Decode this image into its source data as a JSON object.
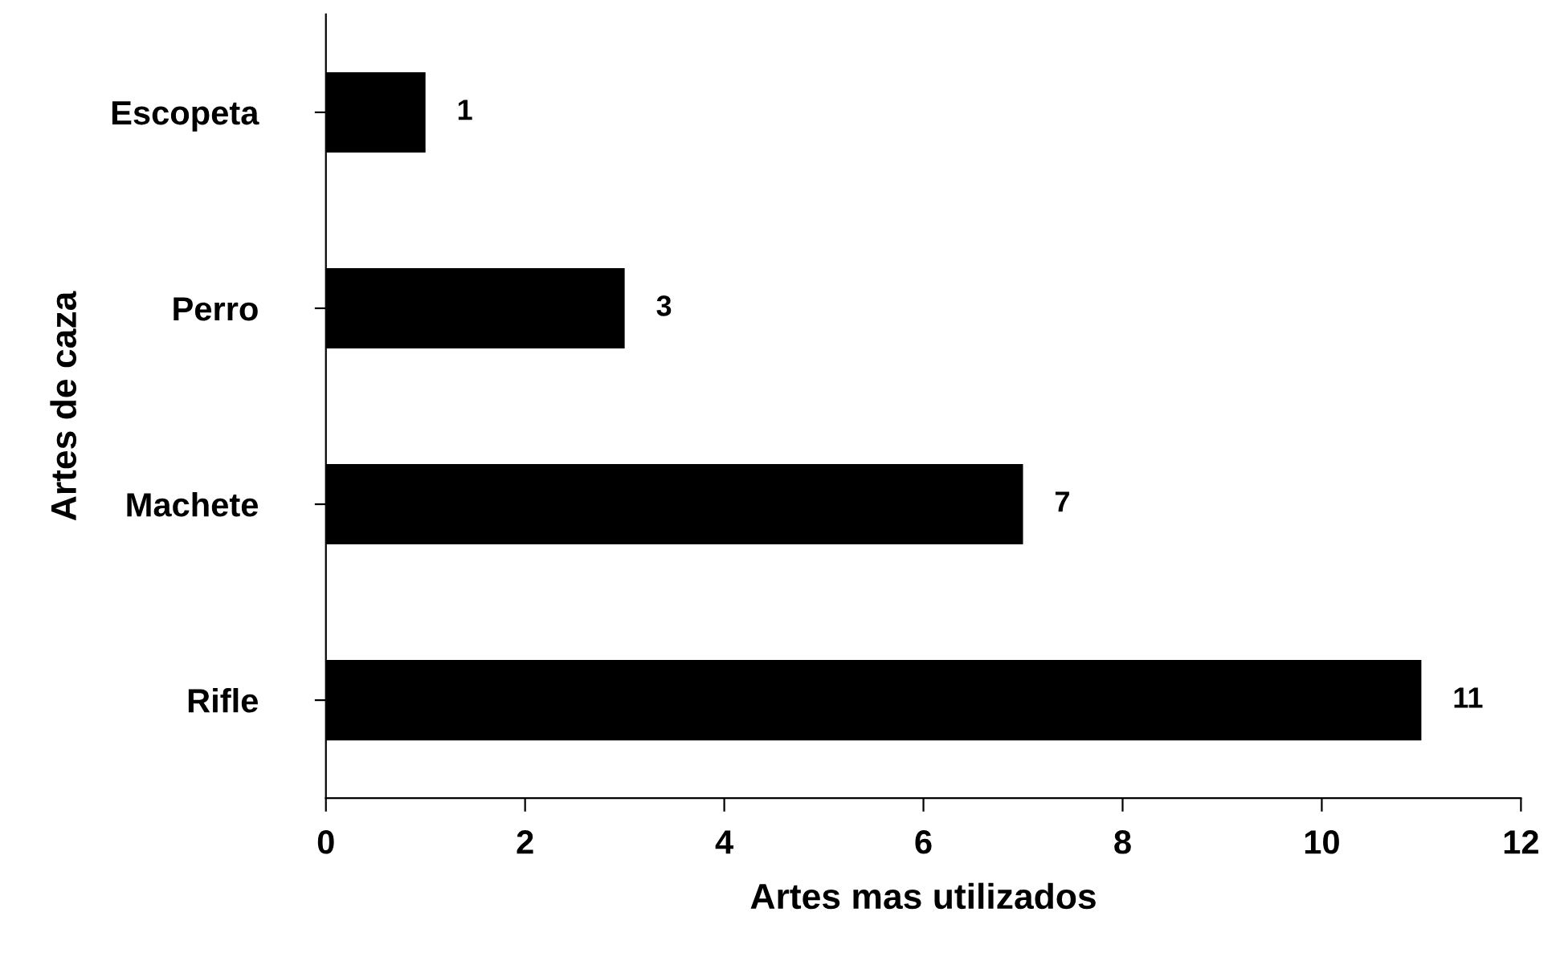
{
  "chart_data": {
    "type": "bar",
    "orientation": "horizontal",
    "categories": [
      "Escopeta",
      "Perro",
      "Machete",
      "Rifle"
    ],
    "values": [
      1,
      3,
      7,
      11
    ],
    "color": "#000000",
    "xlim": [
      0,
      12
    ],
    "xticks": [
      0,
      2,
      4,
      6,
      8,
      10,
      12
    ],
    "xlabel": "Artes mas utilizados",
    "ylabel": "Artes de caza",
    "data_labels": true,
    "grid": false,
    "legend": false
  }
}
